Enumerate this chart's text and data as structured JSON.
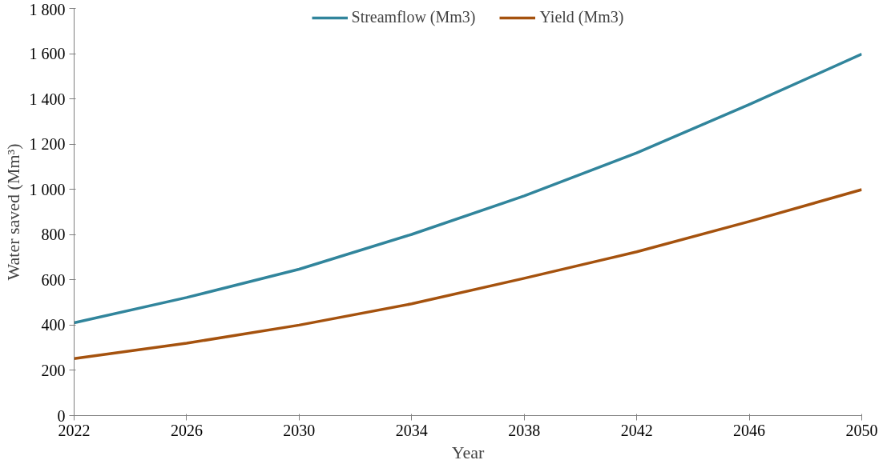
{
  "chart_data": {
    "type": "line",
    "xlabel": "Year",
    "ylabel": "Water saved (Mm³)",
    "x": [
      2022,
      2026,
      2030,
      2034,
      2038,
      2042,
      2046,
      2050
    ],
    "series": [
      {
        "name": "Streamflow (Mm3)",
        "color": "#31859c",
        "values": [
          410,
          522,
          647,
          801,
          971,
          1161,
          1375,
          1598
        ]
      },
      {
        "name": "Yield (Mm3)",
        "color": "#a5520e",
        "values": [
          252,
          320,
          400,
          494,
          607,
          724,
          858,
          999
        ]
      }
    ],
    "xlim": [
      2022,
      2050
    ],
    "xticks": [
      2022,
      2026,
      2030,
      2034,
      2038,
      2042,
      2046,
      2050
    ],
    "ylim": [
      0,
      1800
    ],
    "yticks": [
      0,
      200,
      400,
      600,
      800,
      {
        "value": 1000,
        "label": "1 000"
      },
      {
        "value": 1200,
        "label": "1 200"
      },
      {
        "value": 1400,
        "label": "1 400"
      },
      {
        "value": 1600,
        "label": "1 600"
      },
      {
        "value": 1800,
        "label": "1 800"
      }
    ],
    "grid": false,
    "legend": "top",
    "marker": "none",
    "line_style": "solid"
  }
}
